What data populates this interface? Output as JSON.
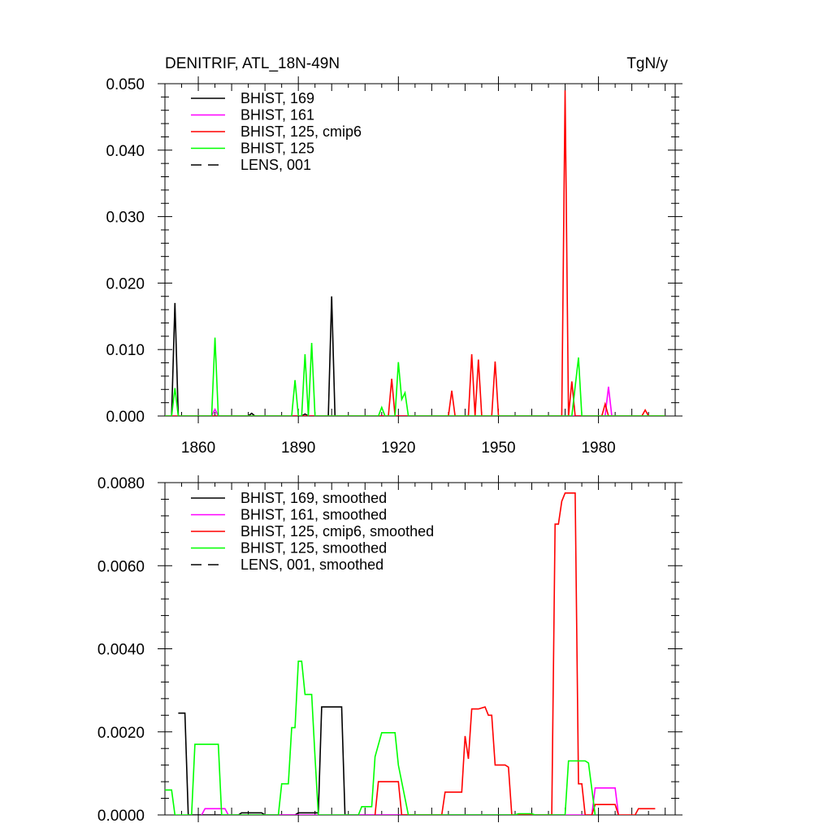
{
  "charts": [
    {
      "type": "line",
      "title": "DENITRIF, ATL_18N-49N",
      "units": "TgN/y",
      "x_ticks": [
        1860,
        1890,
        1920,
        1950,
        1980
      ],
      "y_ticks": [
        "0.000",
        "0.010",
        "0.020",
        "0.030",
        "0.040",
        "0.050"
      ],
      "xlim": [
        1850,
        2003
      ],
      "ylim": [
        0,
        0.05
      ],
      "legend": [
        {
          "label": "BHIST, 169",
          "color": "#000000",
          "dash": false
        },
        {
          "label": "BHIST, 161",
          "color": "#ff00ff",
          "dash": false
        },
        {
          "label": "BHIST, 125, cmip6",
          "color": "#ff0000",
          "dash": false
        },
        {
          "label": "BHIST, 125",
          "color": "#00ff00",
          "dash": false
        },
        {
          "label": "LENS, 001",
          "color": "#000000",
          "dash": true
        }
      ],
      "series": [
        {
          "name": "BHIST, 169",
          "color": "#000000",
          "points": [
            [
              1850,
              0
            ],
            [
              1852,
              0
            ],
            [
              1853,
              0.017
            ],
            [
              1854,
              0
            ],
            [
              1875,
              0
            ],
            [
              1876,
              0.0004
            ],
            [
              1877,
              0
            ],
            [
              1891,
              0
            ],
            [
              1892,
              0.0003
            ],
            [
              1893,
              0
            ],
            [
              1899,
              0
            ],
            [
              1900,
              0.018
            ],
            [
              1901,
              0
            ],
            [
              2000,
              0
            ]
          ]
        },
        {
          "name": "BHIST, 161",
          "color": "#ff00ff",
          "points": [
            [
              1850,
              0
            ],
            [
              1864,
              0
            ],
            [
              1865,
              0.001
            ],
            [
              1866,
              0
            ],
            [
              1982,
              0
            ],
            [
              1983,
              0.0044
            ],
            [
              1984,
              0
            ],
            [
              2000,
              0
            ]
          ]
        },
        {
          "name": "BHIST, 125, cmip6",
          "color": "#ff0000",
          "points": [
            [
              1850,
              0
            ],
            [
              1917,
              0
            ],
            [
              1918,
              0.0056
            ],
            [
              1919,
              0
            ],
            [
              1935,
              0
            ],
            [
              1936,
              0.0038
            ],
            [
              1937,
              0
            ],
            [
              1941,
              0
            ],
            [
              1942,
              0.0093
            ],
            [
              1943,
              0
            ],
            [
              1944,
              0.0085
            ],
            [
              1945,
              0
            ],
            [
              1948,
              0
            ],
            [
              1949,
              0.0082
            ],
            [
              1950,
              0
            ],
            [
              1969,
              0
            ],
            [
              1970,
              0.049
            ],
            [
              1971,
              0
            ],
            [
              1972,
              0.0052
            ],
            [
              1973,
              0
            ],
            [
              1981,
              0
            ],
            [
              1982,
              0.0018
            ],
            [
              1983,
              0
            ],
            [
              1993,
              0
            ],
            [
              1994,
              0.0009
            ],
            [
              1995,
              0
            ],
            [
              2000,
              0
            ]
          ]
        },
        {
          "name": "BHIST, 125",
          "color": "#00ff00",
          "points": [
            [
              1850,
              0
            ],
            [
              1852,
              0
            ],
            [
              1853,
              0.0042
            ],
            [
              1854,
              0
            ],
            [
              1864,
              0
            ],
            [
              1865,
              0.0118
            ],
            [
              1866,
              0
            ],
            [
              1888,
              0
            ],
            [
              1889,
              0.0054
            ],
            [
              1890,
              0
            ],
            [
              1891,
              0
            ],
            [
              1892,
              0.0093
            ],
            [
              1893,
              0
            ],
            [
              1894,
              0.011
            ],
            [
              1895,
              0
            ],
            [
              1914,
              0
            ],
            [
              1915,
              0.0013
            ],
            [
              1916,
              0
            ],
            [
              1919,
              0
            ],
            [
              1920,
              0.0081
            ],
            [
              1921,
              0.0025
            ],
            [
              1922,
              0.0035
            ],
            [
              1923,
              0
            ],
            [
              1972,
              0
            ],
            [
              1974,
              0.0088
            ],
            [
              1975,
              0
            ],
            [
              2000,
              0
            ]
          ]
        }
      ]
    },
    {
      "type": "line",
      "title": "",
      "units": "",
      "x_ticks": [],
      "y_ticks": [
        "0.0000",
        "0.0020",
        "0.0040",
        "0.0060",
        "0.0080"
      ],
      "xlim": [
        1850,
        2003
      ],
      "ylim": [
        0,
        0.008
      ],
      "legend": [
        {
          "label": "BHIST, 169, smoothed",
          "color": "#000000",
          "dash": false
        },
        {
          "label": "BHIST, 161, smoothed",
          "color": "#ff00ff",
          "dash": false
        },
        {
          "label": "BHIST, 125, cmip6, smoothed",
          "color": "#ff0000",
          "dash": false
        },
        {
          "label": "BHIST, 125, smoothed",
          "color": "#00ff00",
          "dash": false
        },
        {
          "label": "LENS, 001, smoothed",
          "color": "#000000",
          "dash": true
        }
      ],
      "series": [
        {
          "name": "BHIST, 169, smoothed",
          "color": "#000000",
          "points": [
            [
              1854,
              0.00245
            ],
            [
              1856,
              0.00245
            ],
            [
              1857,
              0
            ],
            [
              1861,
              0
            ],
            [
              1872,
              0
            ],
            [
              1873,
              5e-05
            ],
            [
              1879,
              5e-05
            ],
            [
              1880,
              0
            ],
            [
              1889,
              0
            ],
            [
              1890,
              5e-05
            ],
            [
              1896,
              5e-05
            ],
            [
              1897,
              0.0026
            ],
            [
              1903,
              0.0026
            ],
            [
              1904,
              0
            ],
            [
              1970,
              0
            ]
          ]
        },
        {
          "name": "BHIST, 161, smoothed",
          "color": "#ff00ff",
          "points": [
            [
              1861,
              0
            ],
            [
              1862,
              0.00015
            ],
            [
              1868,
              0.00015
            ],
            [
              1869,
              0
            ],
            [
              1978,
              0
            ],
            [
              1979,
              0.00065
            ],
            [
              1985,
              0.00065
            ],
            [
              1986,
              0
            ]
          ]
        },
        {
          "name": "BHIST, 125, cmip6, smoothed",
          "color": "#ff0000",
          "points": [
            [
              1913,
              0
            ],
            [
              1914,
              0.0008
            ],
            [
              1920,
              0.0008
            ],
            [
              1921,
              0
            ],
            [
              1933,
              0
            ],
            [
              1934,
              0.00055
            ],
            [
              1939,
              0.00055
            ],
            [
              1940,
              0.0019
            ],
            [
              1941,
              0.00135
            ],
            [
              1942,
              0.00255
            ],
            [
              1944,
              0.00255
            ],
            [
              1946,
              0.0026
            ],
            [
              1947,
              0.0024
            ],
            [
              1948,
              0.0024
            ],
            [
              1949,
              0.0012
            ],
            [
              1952,
              0.0012
            ],
            [
              1953,
              0.00115
            ],
            [
              1954,
              0
            ],
            [
              1966,
              0
            ],
            [
              1967,
              0.007
            ],
            [
              1968,
              0.007
            ],
            [
              1969,
              0.00755
            ],
            [
              1970,
              0.00775
            ],
            [
              1973,
              0.00775
            ],
            [
              1974,
              0.00075
            ],
            [
              1975,
              0.00075
            ],
            [
              1976,
              0
            ],
            [
              1978,
              0
            ],
            [
              1979,
              0.00025
            ],
            [
              1985,
              0.00025
            ],
            [
              1986,
              0
            ],
            [
              1991,
              0
            ],
            [
              1992,
              0.00015
            ],
            [
              1997,
              0.00015
            ]
          ]
        },
        {
          "name": "BHIST, 125, smoothed",
          "color": "#00ff00",
          "points": [
            [
              1850,
              0.0006
            ],
            [
              1852,
              0.0006
            ],
            [
              1853,
              0
            ],
            [
              1858,
              0
            ],
            [
              1859,
              0.0017
            ],
            [
              1866,
              0.0017
            ],
            [
              1867,
              0
            ],
            [
              1878,
              0
            ],
            [
              1879,
              0
            ],
            [
              1884,
              0
            ],
            [
              1885,
              0.00075
            ],
            [
              1887,
              0.00075
            ],
            [
              1888,
              0.0021
            ],
            [
              1889,
              0.0021
            ],
            [
              1890,
              0.0037
            ],
            [
              1891,
              0.0037
            ],
            [
              1892,
              0.0029
            ],
            [
              1894,
              0.0029
            ],
            [
              1895,
              0.0014
            ],
            [
              1896,
              0
            ],
            [
              1908,
              0
            ],
            [
              1909,
              0.0002
            ],
            [
              1912,
              0.0002
            ],
            [
              1913,
              0.0014
            ],
            [
              1915,
              0.00198
            ],
            [
              1919,
              0.00198
            ],
            [
              1920,
              0.0012
            ],
            [
              1923,
              0
            ],
            [
              1955,
              0
            ],
            [
              1956,
              3e-05
            ],
            [
              1960,
              3e-05
            ],
            [
              1961,
              0
            ],
            [
              1970,
              0
            ],
            [
              1971,
              0.0013
            ],
            [
              1976,
              0.0013
            ],
            [
              1977,
              0.00125
            ],
            [
              1979,
              0
            ]
          ]
        }
      ]
    }
  ]
}
